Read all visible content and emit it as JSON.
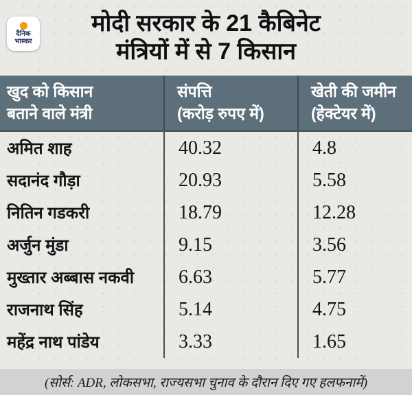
{
  "brand": {
    "name": "Dainik Bhaskar",
    "logo_line1": "दैनिक",
    "logo_line2": "भास्कर",
    "logo_dot_color": "#f5990f",
    "logo_text_color": "#1e2d5a"
  },
  "title": {
    "line1": "मोदी सरकार के 21 कैबिनेट",
    "line2": "मंत्रियों में से 7 किसान"
  },
  "table": {
    "columns": [
      {
        "label_line1": "खुद को किसान",
        "label_line2": "बताने वाले मंत्री"
      },
      {
        "label_line1": "संपत्ति",
        "label_line2": "(करोड़ रुपए में)"
      },
      {
        "label_line1": "खेती की जमीन",
        "label_line2": "(हेक्टेयर में)"
      }
    ],
    "rows": [
      {
        "minister": "अमित शाह",
        "assets": "40.32",
        "land": "4.8"
      },
      {
        "minister": "सदानंद गौड़ा",
        "assets": "20.93",
        "land": "5.58"
      },
      {
        "minister": "नितिन गडकरी",
        "assets": "18.79",
        "land": "12.28"
      },
      {
        "minister": "अर्जुन मुंडा",
        "assets": "9.15",
        "land": "3.56"
      },
      {
        "minister": "मुख्तार अब्बास नकवी",
        "assets": "6.63",
        "land": "5.77"
      },
      {
        "minister": "राजनाथ सिंह",
        "assets": "5.14",
        "land": "4.75"
      },
      {
        "minister": "महेंद्र नाथ पांडेय",
        "assets": "3.33",
        "land": "1.65"
      }
    ]
  },
  "footer": {
    "source": "(सोर्स: ADR, लोकसभा, राज्यसभा चुनाव के दौरान दिए गए हलफनामें)"
  },
  "colors": {
    "background": "#ebe9e6",
    "header_bg": "#5d6f7b",
    "divider": "#3e4c55",
    "footer_bg": "#d2d2d2",
    "text": "#101010"
  },
  "chart_data": {
    "type": "table",
    "title": "मोदी सरकार के 21 कैबिनेट मंत्रियों में से 7 किसान",
    "columns": [
      "खुद को किसान बताने वाले मंत्री",
      "संपत्ति (करोड़ रुपए में)",
      "खेती की जमीन (हेक्टेयर में)"
    ],
    "rows": [
      [
        "अमित शाह",
        40.32,
        4.8
      ],
      [
        "सदानंद गौड़ा",
        20.93,
        5.58
      ],
      [
        "नितिन गडकरी",
        18.79,
        12.28
      ],
      [
        "अर्जुन मुंडा",
        9.15,
        3.56
      ],
      [
        "मुख्तार अब्बास नकवी",
        6.63,
        5.77
      ],
      [
        "राजनाथ सिंह",
        5.14,
        4.75
      ],
      [
        "महेंद्र नाथ पांडेय",
        3.33,
        1.65
      ]
    ],
    "source": "(सोर्स: ADR, लोकसभा, राज्यसभा चुनाव के दौरान दिए गए हलफनामें)"
  }
}
